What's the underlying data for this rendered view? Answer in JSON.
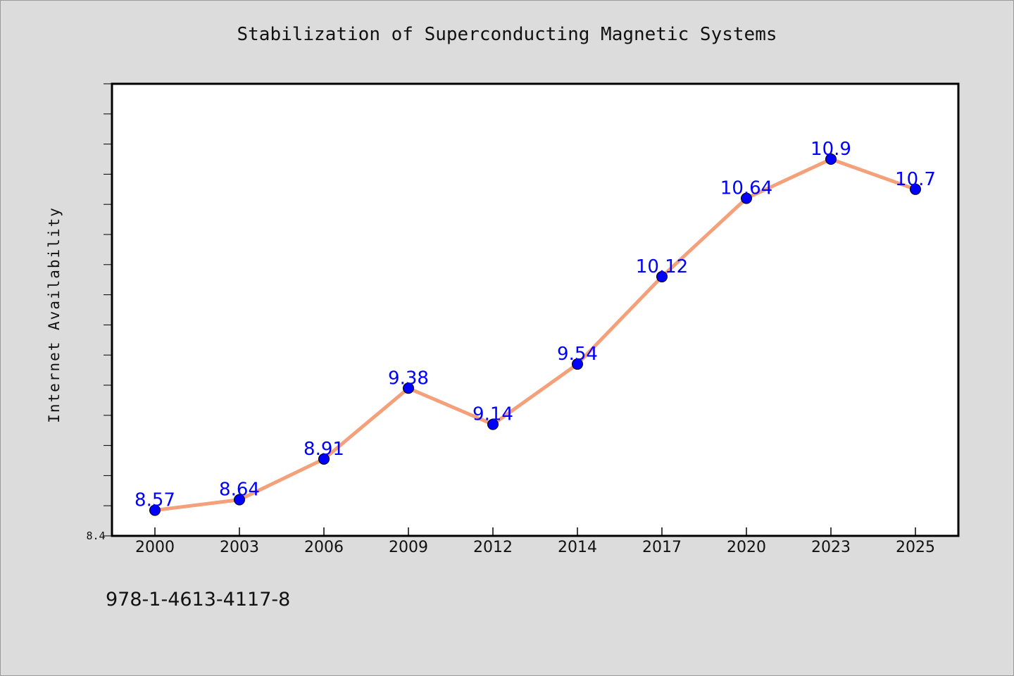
{
  "chart_data": {
    "type": "line",
    "title": "Stabilization of Superconducting Magnetic Systems",
    "xlabel": "",
    "ylabel": "Internet Availability",
    "categories": [
      "2000",
      "2003",
      "2006",
      "2009",
      "2012",
      "2014",
      "2017",
      "2020",
      "2023",
      "2025"
    ],
    "series": [
      {
        "values": [
          8.57,
          8.64,
          8.91,
          9.38,
          9.14,
          9.54,
          10.12,
          10.64,
          10.9,
          10.7
        ],
        "data_labels": [
          "8.57",
          "8.64",
          "8.91",
          "9.38",
          "9.14",
          "9.54",
          "10.12",
          "10.64",
          "10.9",
          "10.7"
        ],
        "color": "#f4a07a",
        "marker_color": "#0000ff"
      }
    ],
    "ylim": [
      8.4,
      11.4
    ],
    "y_tick_label": "8.4",
    "grid": false,
    "legend": "none"
  },
  "footer": {
    "identifier": "978-1-4613-4117-8"
  },
  "colors": {
    "background": "#dcdcdc",
    "plot_background": "#ffffff",
    "line": "#f4a07a",
    "marker": "#0000ff",
    "data_label": "#0000ff"
  }
}
